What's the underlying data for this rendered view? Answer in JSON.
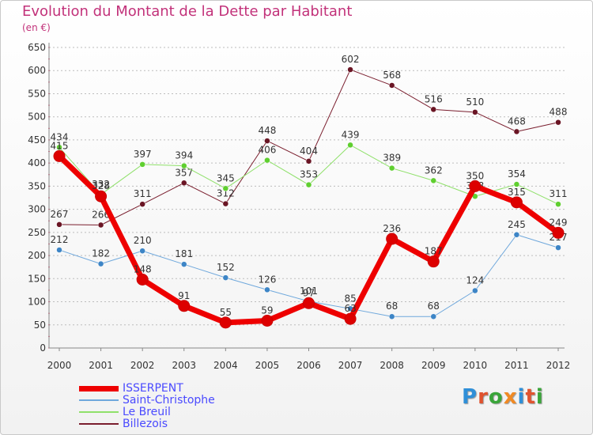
{
  "title": "Evolution du Montant de la Dette par Habitant",
  "subtitle": "(en €)",
  "colors": {
    "title": "#c2327a",
    "axis_text": "#333333",
    "grid": "#bdbdbd",
    "legend_text": "#4a4aff"
  },
  "logo": {
    "letters": [
      "P",
      "r",
      "o",
      "x",
      "i",
      "t",
      "i"
    ],
    "letter_colors": [
      "#2f8fd8",
      "#e0532f",
      "#3aa53a",
      "#f08a24",
      "#2f8fd8",
      "#e0532f",
      "#3aa53a"
    ]
  },
  "chart_data": {
    "type": "line",
    "title": "Evolution du Montant de la Dette par Habitant",
    "subtitle": "(en €)",
    "xlabel": "",
    "ylabel": "",
    "x": [
      "2000",
      "2001",
      "2002",
      "2003",
      "2004",
      "2005",
      "2006",
      "2007",
      "2008",
      "2009",
      "2010",
      "2011",
      "2012"
    ],
    "ylim": [
      0,
      650
    ],
    "yticks": [
      0,
      50,
      100,
      150,
      200,
      250,
      300,
      350,
      400,
      450,
      500,
      550,
      600,
      650
    ],
    "grid": true,
    "legend_position": "bottom-left",
    "series": [
      {
        "name": "Billezois",
        "color": "#7a1e2e",
        "width": 1,
        "marker": "#6a1524",
        "values": [
          267,
          266,
          311,
          357,
          312,
          448,
          404,
          602,
          568,
          516,
          510,
          468,
          488
        ],
        "labels": [
          "267",
          "266",
          "311",
          "357",
          "312",
          "448",
          "404",
          "602",
          "568",
          "516",
          "510",
          "468",
          "488"
        ]
      },
      {
        "name": "Le Breuil",
        "color": "#8fe06a",
        "width": 1,
        "marker": "#5fcf2f",
        "values": [
          434,
          332,
          397,
          394,
          345,
          406,
          353,
          439,
          389,
          362,
          328,
          354,
          311
        ],
        "labels": [
          "434",
          "332",
          "397",
          "394",
          "345",
          "406",
          "353",
          "439",
          "389",
          "362",
          "328",
          "354",
          "311"
        ]
      },
      {
        "name": "Saint-Christophe",
        "color": "#6fa8dc",
        "width": 1,
        "marker": "#3d85c6",
        "values": [
          212,
          182,
          210,
          181,
          152,
          126,
          101,
          85,
          68,
          68,
          124,
          245,
          217
        ],
        "labels": [
          "212",
          "182",
          "210",
          "181",
          "152",
          "126",
          "101",
          "85",
          "68",
          "68",
          "124",
          "245",
          "217"
        ]
      },
      {
        "name": "ISSERPENT",
        "color": "#ee0000",
        "width": 7,
        "marker": "#dd0000",
        "values": [
          415,
          328,
          148,
          91,
          55,
          59,
          97,
          63,
          236,
          187,
          350,
          315,
          249
        ],
        "labels": [
          "415",
          "328",
          "148",
          "91",
          "55",
          "59",
          "97",
          "63",
          "236",
          "187",
          "350",
          "315",
          "249"
        ]
      }
    ],
    "legend_order": [
      "ISSERPENT",
      "Saint-Christophe",
      "Le Breuil",
      "Billezois"
    ]
  }
}
